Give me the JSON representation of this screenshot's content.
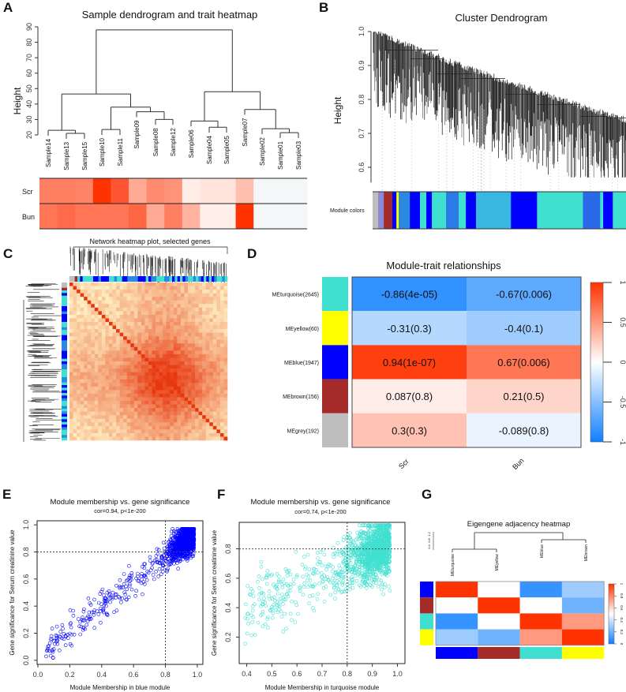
{
  "panels": {
    "a": "A",
    "b": "B",
    "c": "C",
    "d": "D",
    "e": "E",
    "f": "F",
    "g": "G"
  },
  "chart_data": [
    {
      "type": "dendrogram-heatmap",
      "title": "Sample dendrogram and trait heatmap",
      "ylabel": "Height",
      "ylim": [
        20,
        90
      ],
      "yticks": [
        "20",
        "30",
        "40",
        "50",
        "60",
        "70",
        "80",
        "90"
      ],
      "leaves": [
        "Sample14",
        "Sample13",
        "Sample15",
        "Sample10",
        "Sample11",
        "Sample09",
        "Sample08",
        "Sample12",
        "Sample06",
        "Sample04",
        "Sample05",
        "Sample07",
        "Sample02",
        "Sample01",
        "Sample03"
      ],
      "merges": [
        {
          "a": 1,
          "b": 2,
          "h": 21
        },
        {
          "a": 0,
          "b": "m0",
          "h": 23
        },
        {
          "a": 3,
          "b": 4,
          "h": 23.5
        },
        {
          "a": 6,
          "b": 7,
          "h": 30
        },
        {
          "a": 5,
          "b": "m3",
          "h": 35
        },
        {
          "a": "m2",
          "b": "m4",
          "h": 38
        },
        {
          "a": "m1",
          "b": "m5",
          "h": 46.5
        },
        {
          "a": 9,
          "b": 10,
          "h": 25
        },
        {
          "a": 8,
          "b": "m7",
          "h": 29
        },
        {
          "a": 13,
          "b": 14,
          "h": 21.5
        },
        {
          "a": 12,
          "b": "m9",
          "h": 24
        },
        {
          "a": 11,
          "b": "m10",
          "h": 36.5
        },
        {
          "a": "m8",
          "b": "m11",
          "h": 48
        },
        {
          "a": "m6",
          "b": "m12",
          "h": 88
        }
      ],
      "traits": [
        {
          "name": "Scr",
          "colors": [
            "#ff7f62",
            "#ff7f62",
            "#ff8366",
            "#ff3300",
            "#ff5533",
            "#ffaa94",
            "#ff8a6e",
            "#ff9378",
            "#ffeee8",
            "#ffe4dc",
            "#ffe4dc",
            "#ffbfaf",
            "#f4f6f7",
            "#f4f6f7",
            "#f4f6f7"
          ]
        },
        {
          "name": "Bun",
          "colors": [
            "#ff7556",
            "#ff6a4a",
            "#ff7556",
            "#ff7556",
            "#ff7556",
            "#ff6644",
            "#ffaa94",
            "#ff7f62",
            "#ffb3a0",
            "#fff0ea",
            "#fff0ea",
            "#ff3300",
            "#f4f6f7",
            "#f4f6f7",
            "#f4f6f7"
          ]
        }
      ]
    },
    {
      "type": "dendrogram",
      "title": "Cluster Dendrogram",
      "ylabel": "Height",
      "ylim": [
        0.55,
        1.0
      ],
      "yticks": [
        "0.6",
        "0.7",
        "0.8",
        "0.9",
        "1.0"
      ],
      "colorbar_label": "Module colors",
      "total_genes": 5000,
      "module_segments": [
        {
          "c": "#bebebe",
          "n": 110
        },
        {
          "c": "#8a8ad8",
          "n": 110
        },
        {
          "c": "#a52a2a",
          "n": 170
        },
        {
          "c": "#0000ff",
          "n": 80
        },
        {
          "c": "#ffff00",
          "n": 45
        },
        {
          "c": "#2a8ae0",
          "n": 220
        },
        {
          "c": "#0000ff",
          "n": 200
        },
        {
          "c": "#40e0d0",
          "n": 125
        },
        {
          "c": "#0000ff",
          "n": 110
        },
        {
          "c": "#40e0d0",
          "n": 280
        },
        {
          "c": "#2a7ae8",
          "n": 250
        },
        {
          "c": "#40e0d0",
          "n": 140
        },
        {
          "c": "#0000ff",
          "n": 200
        },
        {
          "c": "#38b8e0",
          "n": 690
        },
        {
          "c": "#0000ff",
          "n": 515
        },
        {
          "c": "#40e0d0",
          "n": 905
        },
        {
          "c": "#2a6ae8",
          "n": 340
        },
        {
          "c": "#40e0d0",
          "n": 60
        },
        {
          "c": "#0000ff",
          "n": 190
        },
        {
          "c": "#40e0d0",
          "n": 260
        }
      ]
    },
    {
      "type": "heatmap",
      "title": "Network heatmap plot, selected genes"
    },
    {
      "type": "heatmap",
      "title": "Module-trait relationships",
      "rows": [
        {
          "label": "MEturquoise(2645)",
          "color": "#40e0d0"
        },
        {
          "label": "MEyellow(60)",
          "color": "#ffff00"
        },
        {
          "label": "MEblue(1947)",
          "color": "#0000ff"
        },
        {
          "label": "MEbrown(156)",
          "color": "#a52a2a"
        },
        {
          "label": "MEgrey(192)",
          "color": "#bebebe"
        }
      ],
      "columns": [
        "Scr",
        "Bun"
      ],
      "values": [
        [
          -0.86,
          -0.67
        ],
        [
          -0.31,
          -0.4
        ],
        [
          0.94,
          0.67
        ],
        [
          0.087,
          0.21
        ],
        [
          0.3,
          -0.089
        ]
      ],
      "cell_labels": [
        [
          "-0.86(4e-05)",
          "-0.67(0.006)"
        ],
        [
          "-0.31(0.3)",
          "-0.4(0.1)"
        ],
        [
          "0.94(1e-07)",
          "0.67(0.006)"
        ],
        [
          "0.087(0.8)",
          "0.21(0.5)"
        ],
        [
          "0.3(0.3)",
          "-0.089(0.8)"
        ]
      ],
      "scale_ticks": [
        "1",
        "0.5",
        "0",
        "-0.5",
        "-1"
      ],
      "scale_range": [
        -1,
        1
      ]
    },
    {
      "type": "scatter",
      "title": "Module membership vs. gene significance",
      "subtitle": "cor=0.94, p<1e-200",
      "xlabel": "Module Membership in blue module",
      "ylabel": "Gene significance for Serum creatinine value",
      "xlim": [
        0,
        1
      ],
      "ylim": [
        0,
        1
      ],
      "xticks": [
        "0.0",
        "0.2",
        "0.4",
        "0.6",
        "0.8",
        "1.0"
      ],
      "yticks": [
        "0.0",
        "0.2",
        "0.4",
        "0.6",
        "0.8",
        "1.0"
      ],
      "threshold": [
        0.8,
        0.8
      ],
      "cor": 0.94,
      "color": "#0000ff"
    },
    {
      "type": "scatter",
      "title": "Module membership vs. gene significance",
      "subtitle": "cor=0.74, p<1e-200",
      "xlabel": "Module Membership in turquoise module",
      "ylabel": "Gene significance for Serum creatinine value",
      "xlim": [
        0.37,
        1.01
      ],
      "ylim": [
        0.02,
        0.98
      ],
      "xticks": [
        "0.4",
        "0.5",
        "0.6",
        "0.7",
        "0.8",
        "0.9",
        "1.0"
      ],
      "yticks": [
        "0.2",
        "0.4",
        "0.6",
        "0.8"
      ],
      "threshold": [
        0.8,
        0.8
      ],
      "cor": 0.74,
      "color": "#40e0d0"
    },
    {
      "type": "heatmap",
      "title": "Eigengene adjacency heatmap",
      "dendro_scale": [
        "0.4",
        "0.8",
        "1.2"
      ],
      "columns": [
        "MEturquoise",
        "MEyellow",
        "MEblue",
        "MEbrown"
      ],
      "row_colors": [
        "#0000ff",
        "#a52a2a",
        "#40e0d0",
        "#ffff00"
      ],
      "col_colors": [
        "#0000ff",
        "#a52a2a",
        "#40e0d0",
        "#ffff00"
      ],
      "values": [
        [
          1,
          0.5,
          0.08,
          0.3
        ],
        [
          0.5,
          1,
          0.5,
          0.2
        ],
        [
          0.08,
          0.5,
          1,
          0.75
        ],
        [
          0.3,
          0.2,
          0.75,
          1
        ]
      ],
      "scale_ticks": [
        "1",
        "0.8",
        "0.6",
        "0.4",
        "0.2",
        "0"
      ]
    }
  ]
}
